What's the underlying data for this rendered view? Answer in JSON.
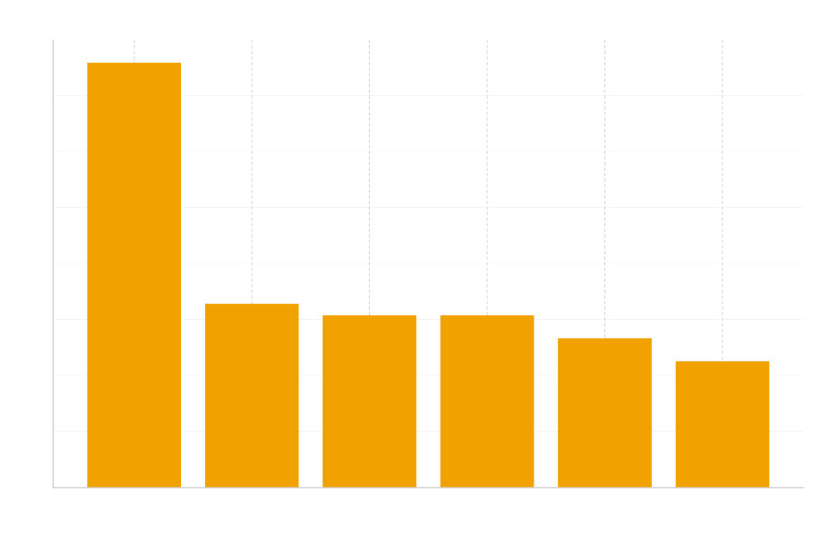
{
  "chart_data": {
    "type": "bar",
    "categories": [
      "",
      "",
      "",
      "",
      "",
      ""
    ],
    "values": [
      7.4,
      3.2,
      3.0,
      3.0,
      2.6,
      2.2
    ],
    "title": "",
    "xlabel": "",
    "ylabel": "",
    "ylim": [
      0,
      7.8
    ],
    "grid": {
      "horizontal": true,
      "vertical": true
    },
    "colors": {
      "bar": "#f2a200",
      "axis": "#cccccc",
      "vertical_grid": "#cfcfcf",
      "horizontal_grid": "#f4f4f4"
    }
  }
}
